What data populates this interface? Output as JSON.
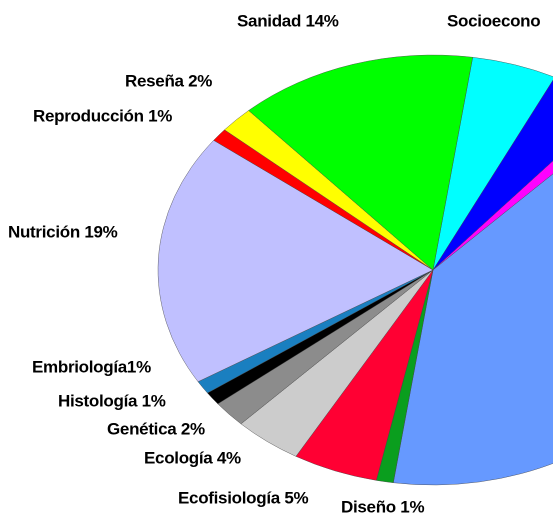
{
  "chart_data": {
    "type": "pie",
    "categories": [
      "Socioecono",
      null,
      null,
      null,
      "Diseño 1%",
      "Ecofisiología 5%",
      "Ecología 4%",
      "Genética 2%",
      "Histología 1%",
      "Embriología1%",
      "Nutrición 19%",
      "Reproducción 1%",
      "Reseña 2%",
      "Sanidad 14%"
    ],
    "values": [
      5,
      4,
      1,
      40,
      1,
      5,
      4,
      2,
      1,
      1,
      19,
      1,
      2,
      14
    ],
    "colors": [
      "#00ffff",
      "#0000ff",
      "#ff00ff",
      "#6699ff",
      "#0a9e1e",
      "#ff0033",
      "#cccccc",
      "#8c8c8c",
      "#000000",
      "#1a7fc0",
      "#c0c0ff",
      "#ff0000",
      "#ffff00",
      "#00ff00"
    ]
  }
}
